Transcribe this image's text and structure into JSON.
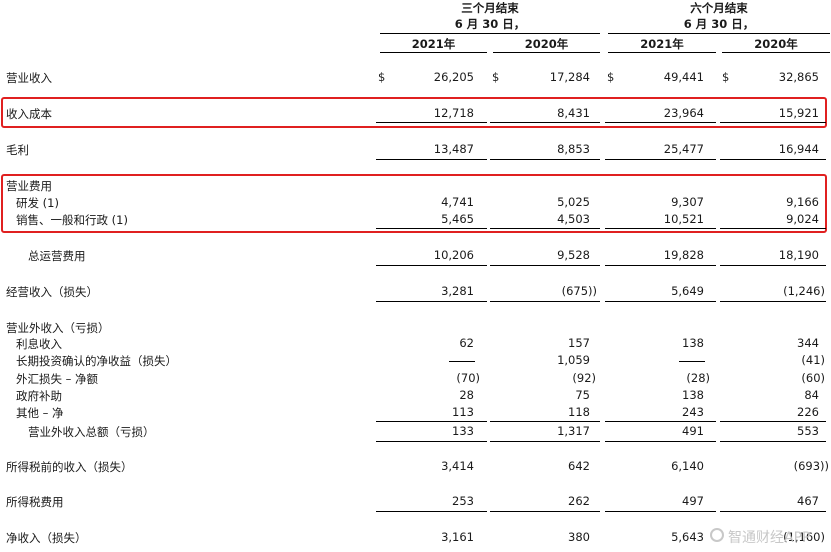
{
  "header": {
    "three_month_title": "三个月结束",
    "three_month_date": "6 月 30 日，",
    "six_month_title": "六个月结束",
    "six_month_date": "6 月 30 日，",
    "col_2021_a": "2021年",
    "col_2020_a": "2020年",
    "col_2021_b": "2021年",
    "col_2020_b": "2020年"
  },
  "currency": "$",
  "rows": {
    "revenue": {
      "label": "营业收入",
      "v1": "26,205",
      "v2": "17,284",
      "v3": "49,441",
      "v4": "32,865"
    },
    "cost": {
      "label": "收入成本",
      "v1": "12,718",
      "v2": "8,431",
      "v3": "23,964",
      "v4": "15,921"
    },
    "gross": {
      "label": "毛利",
      "v1": "13,487",
      "v2": "8,853",
      "v3": "25,477",
      "v4": "16,944"
    },
    "opex_header": {
      "label": "营业费用"
    },
    "rnd": {
      "label": "研发 (1)",
      "v1": "4,741",
      "v2": "5,025",
      "v3": "9,307",
      "v4": "9,166"
    },
    "sga": {
      "label": "销售、一般和行政 (1)",
      "v1": "5,465",
      "v2": "4,503",
      "v3": "10,521",
      "v4": "9,024"
    },
    "total_opex": {
      "label": "总运营费用",
      "v1": "10,206",
      "v2": "9,528",
      "v3": "19,828",
      "v4": "18,190"
    },
    "op_income": {
      "label": "经营收入（损失）",
      "v1": "3,281",
      "v2": "(675))",
      "v3": "5,649",
      "v4": "(1,246)"
    },
    "nonop_header": {
      "label": "营业外收入（亏损）"
    },
    "interest": {
      "label": "利息收入",
      "v1": "62",
      "v2": "157",
      "v3": "138",
      "v4": "344"
    },
    "lt_invest": {
      "label": "长期投资确认的净收益（损失）",
      "v1": "",
      "v2": "1,059",
      "v3": "",
      "v4": "(41)"
    },
    "fx": {
      "label": "外汇损失 – 净额",
      "v1": "(70)",
      "v2": "(92)",
      "v3": "(28)",
      "v4": "(60)"
    },
    "gov": {
      "label": "政府补助",
      "v1": "28",
      "v2": "75",
      "v3": "138",
      "v4": "84"
    },
    "other": {
      "label": "其他 – 净",
      "v1": "113",
      "v2": "118",
      "v3": "243",
      "v4": "226"
    },
    "nonop_total": {
      "label": "营业外收入总额（亏损）",
      "v1": "133",
      "v2": "1,317",
      "v3": "491",
      "v4": "553"
    },
    "pretax": {
      "label": "所得税前的收入（损失）",
      "v1": "3,414",
      "v2": "642",
      "v3": "6,140",
      "v4": "(693))"
    },
    "tax": {
      "label": "所得税费用",
      "v1": "253",
      "v2": "262",
      "v3": "497",
      "v4": "467"
    },
    "net": {
      "label": "净收入（损失）",
      "v1": "3,161",
      "v2": "380",
      "v3": "5,643",
      "v4": "(1,160)"
    }
  },
  "watermark": "智通财经APP",
  "colors": {
    "highlight_box": "#e02020"
  }
}
